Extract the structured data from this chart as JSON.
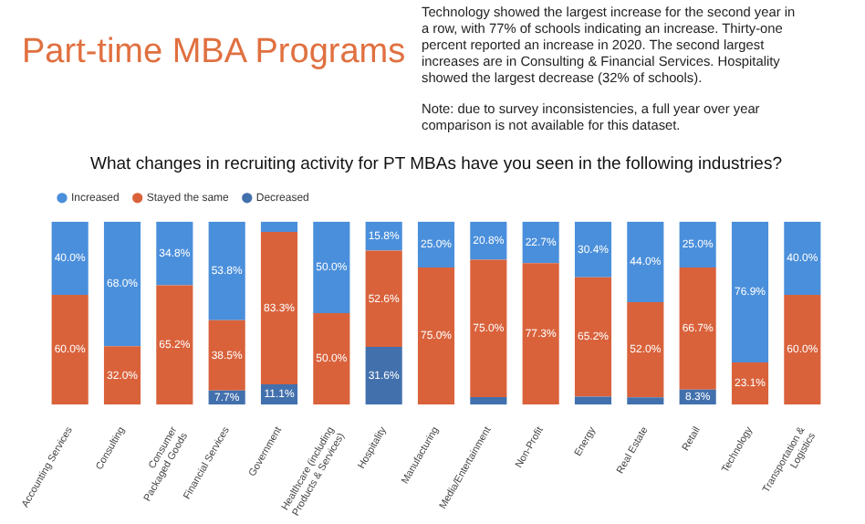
{
  "chart_data": {
    "type": "bar",
    "title": "Part-time MBA Programs",
    "subtitle": "What changes in recruiting activity for PT MBAs have you seen in the following industries?",
    "annotations": [
      "Technology showed the largest increase for the second year in a row, with 77% of schools indicating an increase. Thirty-one percent reported an increase in 2020. The second largest increases are in Consulting & Financial Services. Hospitality showed the largest decrease (32% of schools).",
      "Note: due to survey inconsistencies, a full year over year comparison is not available for this dataset."
    ],
    "categories": [
      "Accounting Services",
      "Consulting",
      "Consumer Packaged Goods",
      "Financial Services",
      "Government",
      "Healthcare (including Products & Services)",
      "Hospitality",
      "Manufacturing",
      "Media/Entertainment",
      "Non-Profit",
      "Energy",
      "Real Estate",
      "Retail",
      "Technology",
      "Transportation & Logistics"
    ],
    "stacked": true,
    "legend": "top left",
    "series": [
      {
        "name": "Decreased",
        "color": "#4270ad",
        "values": [
          0,
          0,
          0,
          7.7,
          11.1,
          0,
          31.6,
          0,
          4.2,
          0,
          4.4,
          4,
          8.3,
          0,
          0
        ],
        "value_labels": [
          null,
          null,
          null,
          "7.7%",
          "11.1%",
          null,
          "31.6%",
          null,
          null,
          null,
          null,
          null,
          "8.3%",
          null,
          null
        ]
      },
      {
        "name": "Stayed the same",
        "color": "#d9623b",
        "values": [
          60,
          32,
          65.2,
          38.5,
          83.3,
          50,
          52.6,
          75,
          75,
          77.3,
          65.2,
          52,
          66.7,
          23.1,
          60
        ],
        "value_labels": [
          "60.0%",
          "32.0%",
          "65.2%",
          "38.5%",
          "83.3%",
          "50.0%",
          "52.6%",
          "75.0%",
          "75.0%",
          "77.3%",
          "65.2%",
          "52.0%",
          "66.7%",
          "23.1%",
          "60.0%"
        ]
      },
      {
        "name": "Increased",
        "color": "#4a8fdb",
        "values": [
          40,
          68,
          34.8,
          53.8,
          5.6,
          50,
          15.8,
          25,
          20.8,
          22.7,
          30.4,
          44,
          25,
          76.9,
          40
        ],
        "value_labels": [
          "40.0%",
          "68.0%",
          "34.8%",
          "53.8%",
          null,
          "50.0%",
          "15.8%",
          "25.0%",
          "20.8%",
          "22.7%",
          "30.4%",
          "44.0%",
          "25.0%",
          "76.9%",
          "40.0%"
        ]
      }
    ]
  }
}
